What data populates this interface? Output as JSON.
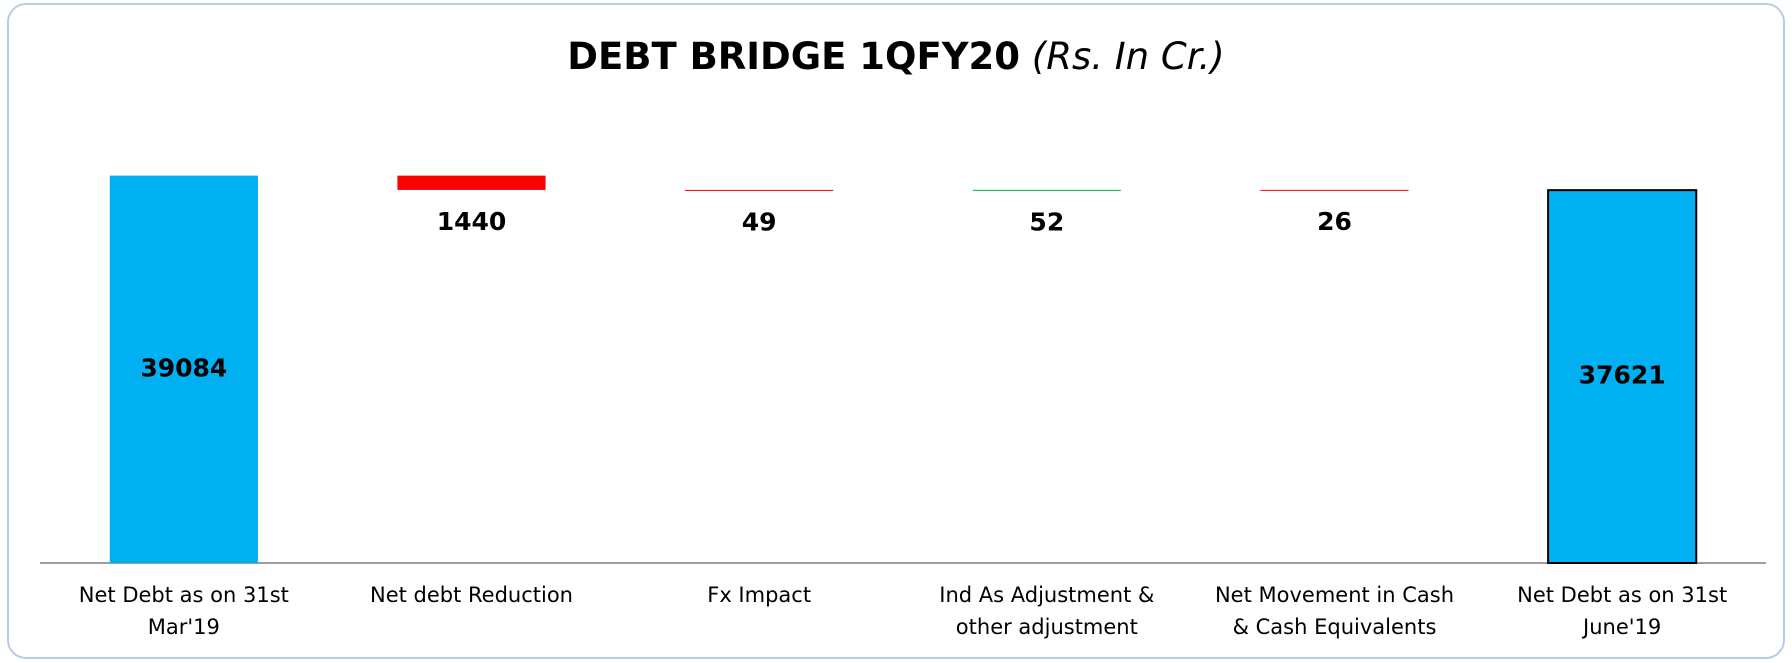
{
  "chart_data": {
    "type": "waterfall",
    "title": "DEBT BRIDGE 1QFY20",
    "subtitle": "(Rs. In Cr.)",
    "categories": [
      "Net Debt as on 31st Mar'19",
      "Net debt Reduction",
      "Fx Impact",
      "Ind As Adjustment & other adjustment",
      "Net Movement in Cash & Cash Equivalents",
      "Net Debt as on 31st June'19"
    ],
    "values": [
      39084,
      -1440,
      -49,
      52,
      -26,
      37621
    ],
    "value_labels": [
      "39084",
      "1440",
      "49",
      "52",
      "26",
      "37621"
    ],
    "colors": [
      "#00b0f0",
      "#ff0000",
      "#ff0000",
      "#00b050",
      "#ff0000",
      "#00b0f0"
    ],
    "edgecolors": [
      "none",
      "none",
      "none",
      "none",
      "none",
      "#000000"
    ],
    "ylim": [
      0,
      45000
    ]
  }
}
